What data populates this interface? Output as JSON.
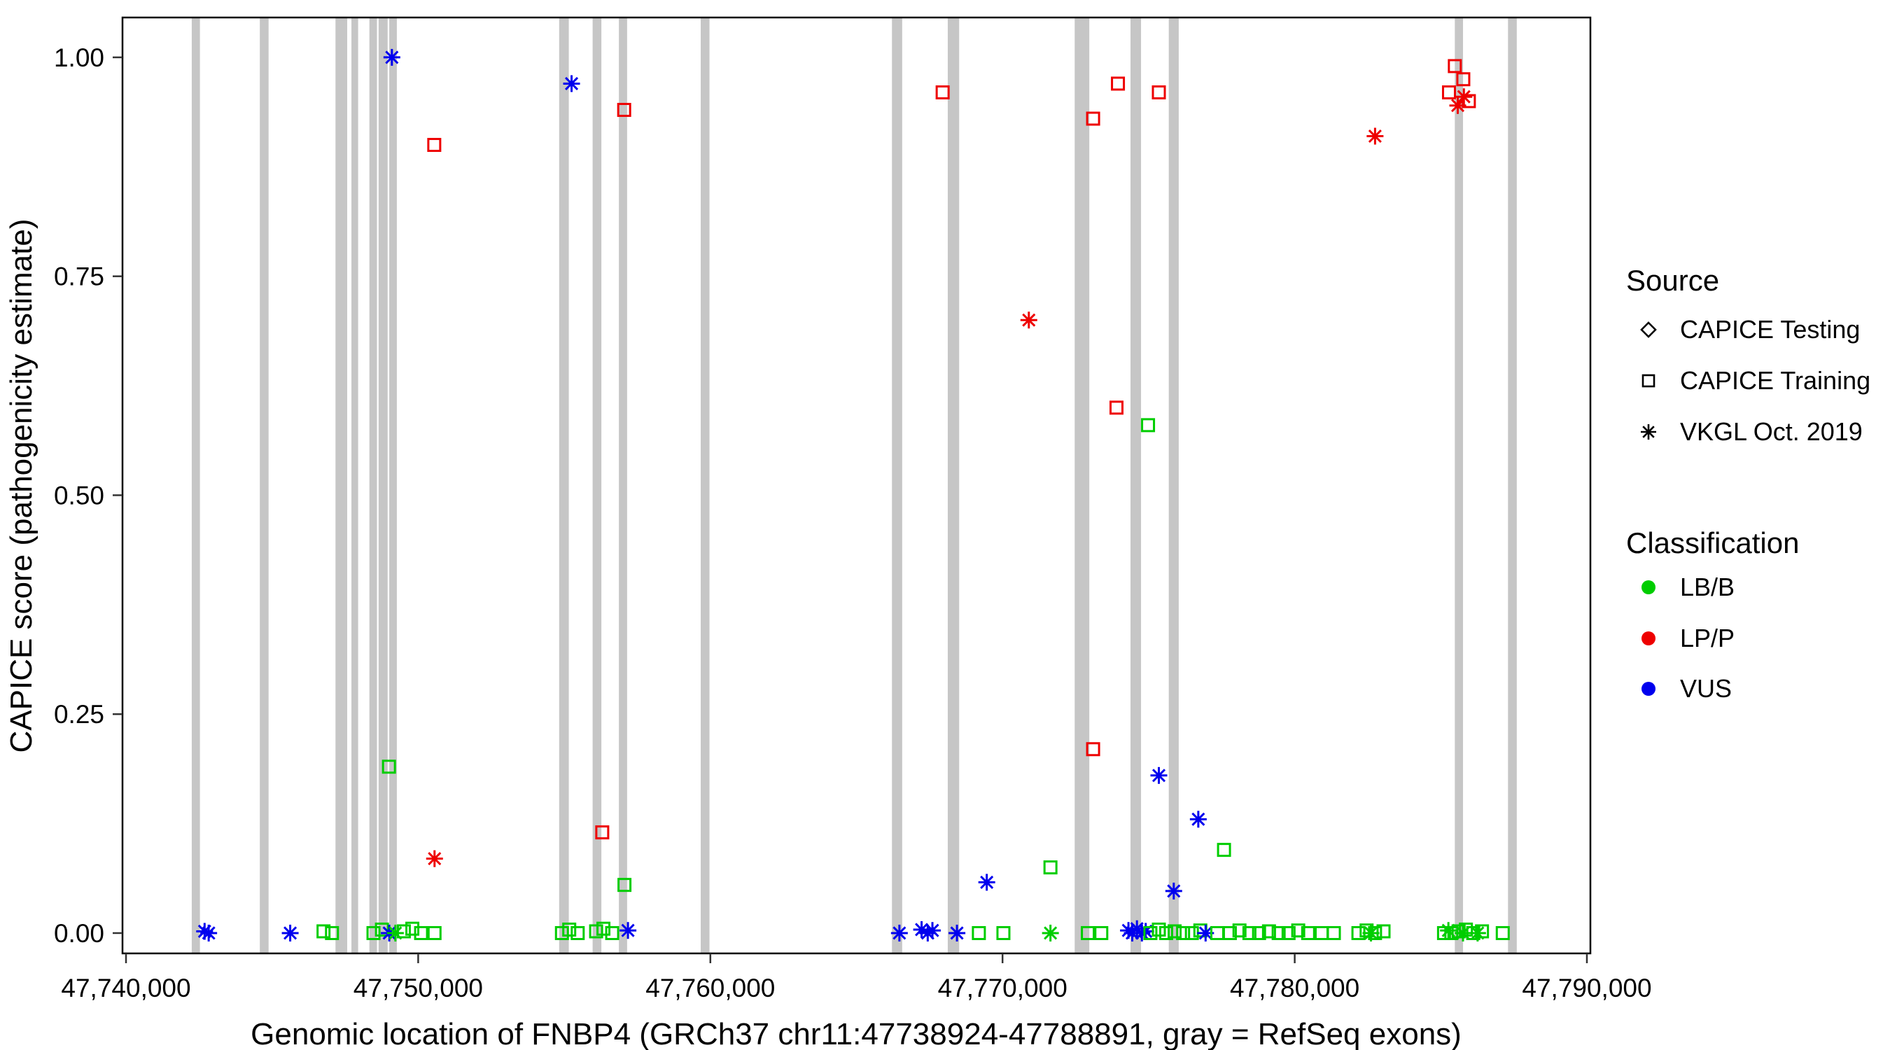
{
  "chart_data": {
    "type": "scatter",
    "title": "",
    "xlabel": "Genomic location of FNBP4 (GRCh37 chr11:47738924-47788891, gray = RefSeq exons)",
    "ylabel": "CAPICE score (pathogenicity estimate)",
    "xlim": [
      47739880,
      47790120
    ],
    "ylim": [
      -0.0232,
      1.0455
    ],
    "grid": false,
    "legend_position": "right",
    "panel_background": "#FFFFFF",
    "panel_border_color": "#000000",
    "exon_color": "#C6C6C6",
    "class_colors": {
      "LB/B": "#00CD00",
      "LP/P": "#EE0000",
      "VUS": "#0000EE"
    },
    "x_ticks": [
      {
        "value": 47740000,
        "label": "47,740,000"
      },
      {
        "value": 47750000,
        "label": "47,750,000"
      },
      {
        "value": 47760000,
        "label": "47,760,000"
      },
      {
        "value": 47770000,
        "label": "47,770,000"
      },
      {
        "value": 47780000,
        "label": "47,780,000"
      },
      {
        "value": 47790000,
        "label": "47,790,000"
      }
    ],
    "y_ticks": [
      {
        "value": 0.0,
        "label": "0.00"
      },
      {
        "value": 0.25,
        "label": "0.25"
      },
      {
        "value": 0.5,
        "label": "0.50"
      },
      {
        "value": 0.75,
        "label": "0.75"
      },
      {
        "value": 1.0,
        "label": "1.00"
      }
    ],
    "legend": {
      "source": {
        "title": "Source",
        "items": [
          {
            "shape": "diamond",
            "label": "CAPICE Testing"
          },
          {
            "shape": "square",
            "label": "CAPICE Training"
          },
          {
            "shape": "asterisk",
            "label": "VKGL Oct. 2019"
          }
        ]
      },
      "classification": {
        "title": "Classification",
        "items": [
          {
            "color": "#00CD00",
            "label": "LB/B"
          },
          {
            "color": "#EE0000",
            "label": "LP/P"
          },
          {
            "color": "#0000EE",
            "label": "VUS"
          }
        ]
      }
    },
    "exons": [
      [
        47742390,
        280
      ],
      [
        47744730,
        300
      ],
      [
        47747370,
        400
      ],
      [
        47747830,
        230
      ],
      [
        47748460,
        260
      ],
      [
        47748800,
        310
      ],
      [
        47749140,
        260
      ],
      [
        47754990,
        330
      ],
      [
        47756120,
        300
      ],
      [
        47757010,
        280
      ],
      [
        47759820,
        300
      ],
      [
        47766390,
        350
      ],
      [
        47768320,
        390
      ],
      [
        47772720,
        500
      ],
      [
        47774560,
        360
      ],
      [
        47775860,
        340
      ],
      [
        47785620,
        280
      ],
      [
        47787450,
        300
      ]
    ],
    "points": [
      [
        47749100,
        1.0,
        "ast",
        "VUS"
      ],
      [
        47755250,
        0.97,
        "ast",
        "VUS"
      ],
      [
        47757050,
        0.94,
        "sq",
        "LP/P"
      ],
      [
        47750550,
        0.9,
        "sq",
        "LP/P"
      ],
      [
        47767950,
        0.96,
        "sq",
        "LP/P"
      ],
      [
        47773100,
        0.93,
        "sq",
        "LP/P"
      ],
      [
        47773950,
        0.97,
        "sq",
        "LP/P"
      ],
      [
        47775350,
        0.96,
        "sq",
        "LP/P"
      ],
      [
        47782750,
        0.91,
        "ast",
        "LP/P"
      ],
      [
        47785480,
        0.99,
        "sq",
        "LP/P"
      ],
      [
        47785280,
        0.96,
        "sq",
        "LP/P"
      ],
      [
        47785770,
        0.975,
        "sq",
        "LP/P"
      ],
      [
        47785790,
        0.955,
        "ast",
        "LP/P"
      ],
      [
        47785960,
        0.95,
        "sq",
        "LP/P"
      ],
      [
        47785580,
        0.945,
        "ast",
        "LP/P"
      ],
      [
        47770900,
        0.7,
        "ast",
        "LP/P"
      ],
      [
        47773900,
        0.6,
        "sq",
        "LP/P"
      ],
      [
        47774980,
        0.58,
        "sq",
        "LB/B"
      ],
      [
        47773100,
        0.21,
        "sq",
        "LP/P"
      ],
      [
        47775350,
        0.18,
        "ast",
        "VUS"
      ],
      [
        47776700,
        0.13,
        "ast",
        "VUS"
      ],
      [
        47777580,
        0.095,
        "sq",
        "LB/B"
      ],
      [
        47749000,
        0.19,
        "sq",
        "LB/B"
      ],
      [
        47750560,
        0.085,
        "ast",
        "LP/P"
      ],
      [
        47756300,
        0.115,
        "sq",
        "LP/P"
      ],
      [
        47757060,
        0.055,
        "sq",
        "LB/B"
      ],
      [
        47769460,
        0.058,
        "ast",
        "VUS"
      ],
      [
        47771640,
        0.075,
        "sq",
        "LB/B"
      ],
      [
        47775860,
        0.048,
        "ast",
        "VUS"
      ],
      [
        47742690,
        0.002,
        "ast",
        "VUS"
      ],
      [
        47742830,
        0.0,
        "ast",
        "VUS"
      ],
      [
        47745620,
        0.0,
        "ast",
        "VUS"
      ],
      [
        47746760,
        0.002,
        "sq",
        "LB/B"
      ],
      [
        47747050,
        0.0,
        "sq",
        "LB/B"
      ],
      [
        47748470,
        0.0,
        "sq",
        "LB/B"
      ],
      [
        47748760,
        0.004,
        "sq",
        "LB/B"
      ],
      [
        47749010,
        0.0,
        "ast",
        "VUS"
      ],
      [
        47749220,
        0.0,
        "ast",
        "LB/B"
      ],
      [
        47749510,
        0.002,
        "sq",
        "LB/B"
      ],
      [
        47749800,
        0.005,
        "sq",
        "LB/B"
      ],
      [
        47750100,
        0.0,
        "sq",
        "LB/B"
      ],
      [
        47750560,
        0.0,
        "sq",
        "LB/B"
      ],
      [
        47754920,
        0.0,
        "sq",
        "LB/B"
      ],
      [
        47755170,
        0.004,
        "sq",
        "LB/B"
      ],
      [
        47755460,
        0.0,
        "sq",
        "LB/B"
      ],
      [
        47756090,
        0.002,
        "sq",
        "LB/B"
      ],
      [
        47756340,
        0.005,
        "sq",
        "LB/B"
      ],
      [
        47756640,
        0.0,
        "sq",
        "LB/B"
      ],
      [
        47757180,
        0.003,
        "ast",
        "VUS"
      ],
      [
        47766470,
        0.0,
        "ast",
        "VUS"
      ],
      [
        47767230,
        0.004,
        "ast",
        "VUS"
      ],
      [
        47767440,
        0.0,
        "ast",
        "VUS"
      ],
      [
        47767600,
        0.003,
        "ast",
        "VUS"
      ],
      [
        47768440,
        0.0,
        "ast",
        "VUS"
      ],
      [
        47769190,
        0.0,
        "sq",
        "LB/B"
      ],
      [
        47770030,
        0.0,
        "sq",
        "LB/B"
      ],
      [
        47771640,
        0.0,
        "ast",
        "LB/B"
      ],
      [
        47772920,
        0.0,
        "sq",
        "LB/B"
      ],
      [
        47773380,
        0.0,
        "sq",
        "LB/B"
      ],
      [
        47774310,
        0.003,
        "ast",
        "VUS"
      ],
      [
        47774440,
        0.0,
        "ast",
        "VUS"
      ],
      [
        47774600,
        0.005,
        "ast",
        "VUS"
      ],
      [
        47774770,
        0.0,
        "ast",
        "VUS"
      ],
      [
        47774900,
        0.002,
        "ast",
        "VUS"
      ],
      [
        47775060,
        0.0,
        "sq",
        "LB/B"
      ],
      [
        47775350,
        0.004,
        "sq",
        "LB/B"
      ],
      [
        47775600,
        0.0,
        "sq",
        "LB/B"
      ],
      [
        47775890,
        0.002,
        "sq",
        "LB/B"
      ],
      [
        47776180,
        0.0,
        "sq",
        "LB/B"
      ],
      [
        47776480,
        0.0,
        "sq",
        "LB/B"
      ],
      [
        47776770,
        0.003,
        "sq",
        "LB/B"
      ],
      [
        47776950,
        0.0,
        "ast",
        "VUS"
      ],
      [
        47777350,
        0.0,
        "sq",
        "LB/B"
      ],
      [
        47777780,
        0.0,
        "sq",
        "LB/B"
      ],
      [
        47778110,
        0.003,
        "sq",
        "LB/B"
      ],
      [
        47778450,
        0.0,
        "sq",
        "LB/B"
      ],
      [
        47778780,
        0.0,
        "sq",
        "LB/B"
      ],
      [
        47779120,
        0.002,
        "sq",
        "LB/B"
      ],
      [
        47779450,
        0.0,
        "sq",
        "LB/B"
      ],
      [
        47779790,
        0.0,
        "sq",
        "LB/B"
      ],
      [
        47780120,
        0.003,
        "sq",
        "LB/B"
      ],
      [
        47780460,
        0.0,
        "sq",
        "LB/B"
      ],
      [
        47780920,
        0.0,
        "sq",
        "LB/B"
      ],
      [
        47781340,
        0.0,
        "sq",
        "LB/B"
      ],
      [
        47782180,
        0.0,
        "sq",
        "LB/B"
      ],
      [
        47782460,
        0.003,
        "sq",
        "LB/B"
      ],
      [
        47782610,
        0.0,
        "ast",
        "LB/B"
      ],
      [
        47782750,
        0.0,
        "sq",
        "LB/B"
      ],
      [
        47783040,
        0.002,
        "sq",
        "LB/B"
      ],
      [
        47785110,
        0.0,
        "sq",
        "LB/B"
      ],
      [
        47785260,
        0.003,
        "ast",
        "LB/B"
      ],
      [
        47785360,
        0.0,
        "sq",
        "LB/B"
      ],
      [
        47785610,
        0.002,
        "sq",
        "LB/B"
      ],
      [
        47785760,
        0.0,
        "ast",
        "LB/B"
      ],
      [
        47785860,
        0.004,
        "sq",
        "LB/B"
      ],
      [
        47786110,
        0.0,
        "sq",
        "LB/B"
      ],
      [
        47786260,
        0.0,
        "ast",
        "LB/B"
      ],
      [
        47786410,
        0.002,
        "sq",
        "LB/B"
      ],
      [
        47787120,
        0.0,
        "sq",
        "LB/B"
      ]
    ]
  }
}
